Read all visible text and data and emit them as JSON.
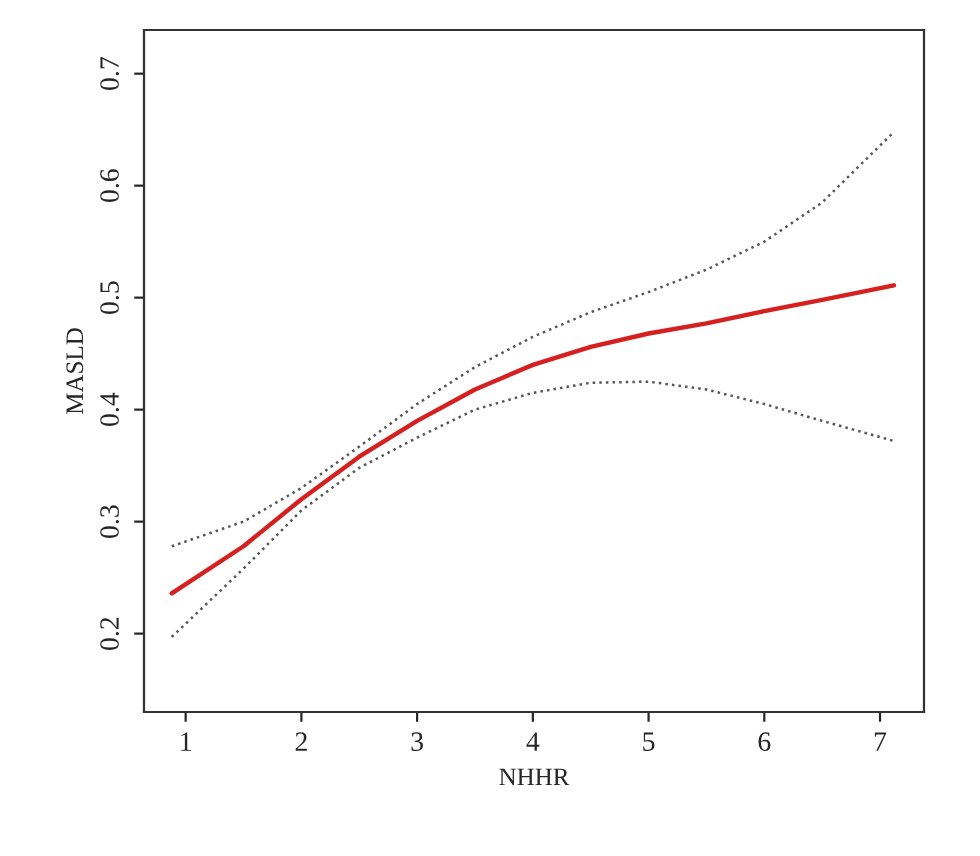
{
  "chart_data": {
    "type": "line",
    "xlabel": "NHHR",
    "ylabel": "MASLD",
    "xlim": [
      0.64,
      7.38
    ],
    "ylim": [
      0.13,
      0.739
    ],
    "xticks": [
      1,
      2,
      3,
      4,
      5,
      6,
      7
    ],
    "yticks": [
      0.2,
      0.3,
      0.4,
      0.5,
      0.6,
      0.7
    ],
    "grid": false,
    "legend": false,
    "series": [
      {
        "color": "#d62020",
        "line_style": "solid",
        "x": [
          0.88,
          1.5,
          2,
          2.5,
          3,
          3.5,
          4,
          4.5,
          5,
          5.5,
          6,
          6.5,
          7.12
        ],
        "values": [
          0.236,
          0.278,
          0.32,
          0.358,
          0.39,
          0.418,
          0.44,
          0.456,
          0.468,
          0.477,
          0.488,
          0.498,
          0.511
        ]
      },
      {
        "color": "#555555",
        "line_style": "dotted",
        "x": [
          0.88,
          1.5,
          2,
          2.5,
          3,
          3.5,
          4,
          4.5,
          5,
          5.5,
          6,
          6.5,
          7.12
        ],
        "values": [
          0.278,
          0.3,
          0.33,
          0.367,
          0.405,
          0.438,
          0.465,
          0.487,
          0.505,
          0.525,
          0.55,
          0.585,
          0.648
        ]
      },
      {
        "color": "#555555",
        "line_style": "dotted",
        "x": [
          0.88,
          1.5,
          2,
          2.5,
          3,
          3.5,
          4,
          4.5,
          5,
          5.5,
          6,
          6.5,
          7.12
        ],
        "values": [
          0.197,
          0.258,
          0.31,
          0.348,
          0.375,
          0.4,
          0.415,
          0.424,
          0.425,
          0.418,
          0.405,
          0.39,
          0.372
        ]
      }
    ]
  }
}
